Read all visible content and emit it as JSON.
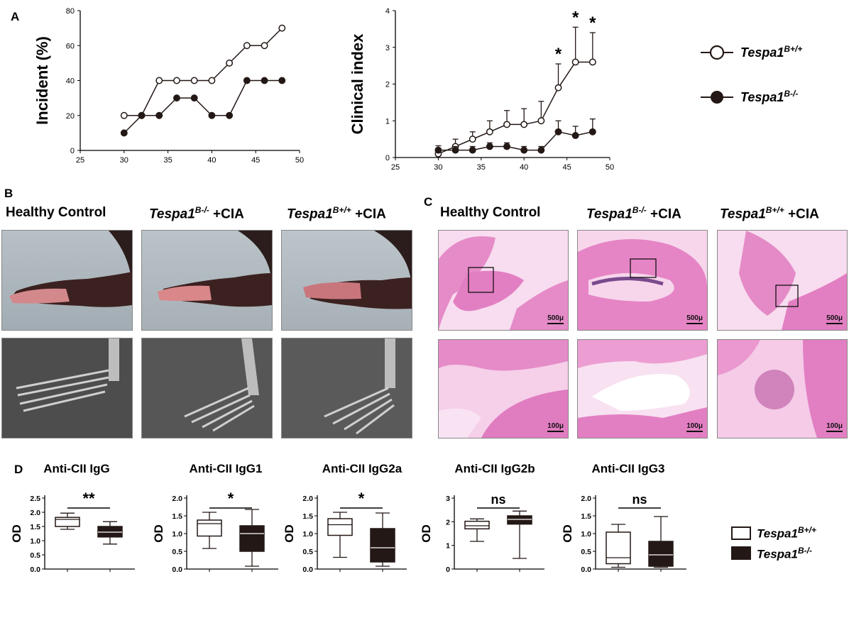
{
  "panel_letters": {
    "a": "A",
    "b": "B",
    "c": "C",
    "d": "D"
  },
  "panel_b_headers": [
    {
      "pre": "Healthy Control",
      "italic": "",
      "sup": "",
      "post": ""
    },
    {
      "pre": "",
      "italic": "Tespa1",
      "sup": "B-/-",
      "post": " +CIA"
    },
    {
      "pre": "",
      "italic": "Tespa1",
      "sup": "B+/+",
      "post": " +CIA"
    }
  ],
  "panel_c_headers": [
    {
      "pre": "Healthy Control",
      "italic": "",
      "sup": "",
      "post": ""
    },
    {
      "pre": "",
      "italic": "Tespa1",
      "sup": "B-/-",
      "post": " +CIA"
    },
    {
      "pre": "",
      "italic": "Tespa1",
      "sup": "B+/+",
      "post": " +CIA"
    }
  ],
  "scale_bars": {
    "top": "500μ",
    "bottom": "100μ"
  },
  "legend_a": [
    {
      "label": "Tespa1",
      "sup": "B+/+",
      "marker": "open-circle"
    },
    {
      "label": "Tespa1",
      "sup": "B-/-",
      "marker": "filled-circle"
    }
  ],
  "legend_d": [
    {
      "label": "Tespa1",
      "sup": "B+/+",
      "fill": "#ffffff"
    },
    {
      "label": "Tespa1",
      "sup": "B-/-",
      "fill": "#231815"
    }
  ],
  "colors": {
    "dark": "#231815",
    "he_pink": "#e78fcb",
    "he_light": "#f6d3ea",
    "xray": "#4a4a4a"
  },
  "chart_data": [
    {
      "type": "line",
      "ylabel": "Incident (%)",
      "xlabel": "",
      "xlim": [
        25,
        50
      ],
      "xticks": [
        25,
        30,
        35,
        40,
        45,
        50
      ],
      "ylim": [
        0,
        80
      ],
      "yticks": [
        0,
        20,
        40,
        60,
        80
      ],
      "series": [
        {
          "name": "Tespa1B+/+",
          "marker": "open",
          "x": [
            30,
            32,
            34,
            36,
            38,
            40,
            42,
            44,
            46,
            48
          ],
          "y": [
            20,
            20,
            40,
            40,
            40,
            40,
            50,
            60,
            60,
            70
          ]
        },
        {
          "name": "Tespa1B-/-",
          "marker": "filled",
          "x": [
            30,
            32,
            34,
            36,
            38,
            40,
            42,
            44,
            46,
            48
          ],
          "y": [
            10,
            20,
            20,
            30,
            30,
            20,
            20,
            40,
            40,
            40
          ]
        }
      ]
    },
    {
      "type": "line",
      "ylabel": "Clinical index",
      "xlabel": "",
      "xlim": [
        25,
        50
      ],
      "xticks": [
        25,
        30,
        35,
        40,
        45,
        50
      ],
      "ylim": [
        0,
        4
      ],
      "yticks": [
        0,
        1,
        2,
        3,
        4
      ],
      "series": [
        {
          "name": "Tespa1B+/+",
          "marker": "open",
          "x": [
            30,
            32,
            34,
            36,
            38,
            40,
            42,
            44,
            46,
            48
          ],
          "y": [
            0.1,
            0.3,
            0.5,
            0.7,
            0.9,
            0.9,
            1.0,
            1.9,
            2.6,
            2.6
          ],
          "err": [
            0.15,
            0.2,
            0.2,
            0.3,
            0.38,
            0.43,
            0.53,
            0.65,
            0.95,
            0.8
          ]
        },
        {
          "name": "Tespa1B-/-",
          "marker": "filled",
          "x": [
            30,
            32,
            34,
            36,
            38,
            40,
            42,
            44,
            46,
            48
          ],
          "y": [
            0.2,
            0.2,
            0.2,
            0.3,
            0.3,
            0.2,
            0.2,
            0.7,
            0.6,
            0.7
          ],
          "err": [
            0.12,
            0.1,
            0.1,
            0.1,
            0.1,
            0.1,
            0.1,
            0.3,
            0.25,
            0.35
          ]
        }
      ],
      "significance": [
        {
          "x": 44,
          "label": "*"
        },
        {
          "x": 46,
          "label": "*"
        },
        {
          "x": 48,
          "label": "*"
        }
      ]
    },
    {
      "type": "box",
      "title": "Anti-CII IgG",
      "ylabel": "OD",
      "ylim": [
        0,
        2.5
      ],
      "yticks": [
        "0.0",
        "0.5",
        "1.0",
        "1.5",
        "2.0",
        "2.5"
      ],
      "sig": "**",
      "boxes": [
        {
          "group": "Tespa1B+/+",
          "min": 1.4,
          "q1": 1.5,
          "median": 1.75,
          "q3": 1.82,
          "max": 1.97
        },
        {
          "group": "Tespa1B-/-",
          "min": 0.88,
          "q1": 1.13,
          "median": 1.3,
          "q3": 1.5,
          "max": 1.67
        }
      ]
    },
    {
      "type": "box",
      "title": "Anti-CII IgG1",
      "ylabel": "OD",
      "ylim": [
        0,
        2.0
      ],
      "yticks": [
        "0.0",
        "0.5",
        "1.0",
        "1.5",
        "2.0"
      ],
      "sig": "*",
      "boxes": [
        {
          "group": "Tespa1B+/+",
          "min": 0.58,
          "q1": 0.93,
          "median": 1.28,
          "q3": 1.38,
          "max": 1.6
        },
        {
          "group": "Tespa1B-/-",
          "min": 0.08,
          "q1": 0.5,
          "median": 1.0,
          "q3": 1.22,
          "max": 1.68
        }
      ]
    },
    {
      "type": "box",
      "title": "Anti-CII IgG2a",
      "ylabel": "OD",
      "ylim": [
        0,
        2.0
      ],
      "yticks": [
        "0.0",
        "0.5",
        "1.0",
        "1.5",
        "2.0"
      ],
      "sig": "*",
      "boxes": [
        {
          "group": "Tespa1B+/+",
          "min": 0.33,
          "q1": 0.95,
          "median": 1.25,
          "q3": 1.42,
          "max": 1.6
        },
        {
          "group": "Tespa1B-/-",
          "min": 0.08,
          "q1": 0.2,
          "median": 0.6,
          "q3": 1.14,
          "max": 1.58
        }
      ]
    },
    {
      "type": "box",
      "title": "Anti-CII IgG2b",
      "ylabel": "OD",
      "ylim": [
        0,
        3
      ],
      "yticks": [
        "0",
        "1",
        "2",
        "3"
      ],
      "sig": "ns",
      "boxes": [
        {
          "group": "Tespa1B+/+",
          "min": 1.17,
          "q1": 1.7,
          "median": 1.83,
          "q3": 2.02,
          "max": 2.12
        },
        {
          "group": "Tespa1B-/-",
          "min": 0.45,
          "q1": 1.9,
          "median": 2.1,
          "q3": 2.25,
          "max": 2.45
        }
      ]
    },
    {
      "type": "box",
      "title": "Anti-CII IgG3",
      "ylabel": "OD",
      "ylim": [
        0,
        2.0
      ],
      "yticks": [
        "0.0",
        "0.5",
        "1.0",
        "1.5",
        "2.0"
      ],
      "sig": "ns",
      "boxes": [
        {
          "group": "Tespa1B+/+",
          "min": 0.05,
          "q1": 0.15,
          "median": 0.32,
          "q3": 1.04,
          "max": 1.26
        },
        {
          "group": "Tespa1B-/-",
          "min": 0.05,
          "q1": 0.08,
          "median": 0.4,
          "q3": 0.78,
          "max": 1.48
        }
      ]
    }
  ]
}
